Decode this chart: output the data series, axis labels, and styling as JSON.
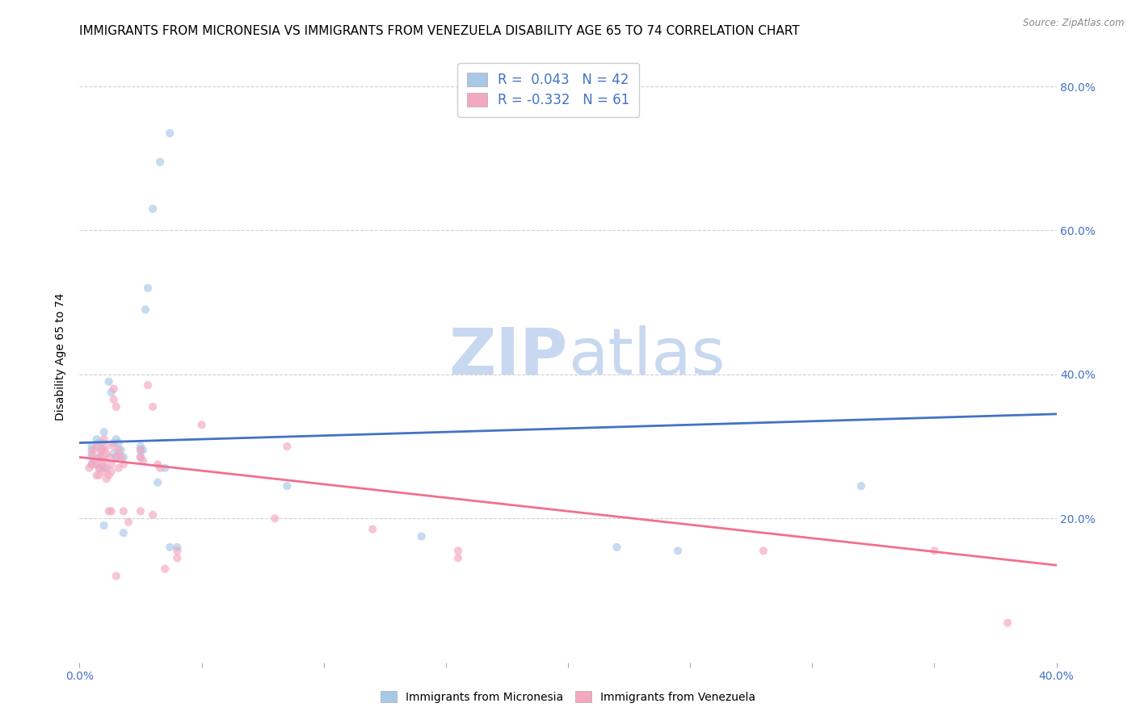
{
  "title": "IMMIGRANTS FROM MICRONESIA VS IMMIGRANTS FROM VENEZUELA DISABILITY AGE 65 TO 74 CORRELATION CHART",
  "source": "Source: ZipAtlas.com",
  "ylabel": "Disability Age 65 to 74",
  "yaxis_ticks": [
    0.0,
    0.2,
    0.4,
    0.6,
    0.8
  ],
  "yaxis_right_labels": [
    "",
    "20.0%",
    "40.0%",
    "60.0%",
    "80.0%"
  ],
  "xlim": [
    0.0,
    0.4
  ],
  "ylim": [
    0.0,
    0.85
  ],
  "legend_line1": "R =  0.043   N = 42",
  "legend_line2": "R = -0.332   N = 61",
  "blue_scatter": [
    [
      0.005,
      0.3
    ],
    [
      0.005,
      0.295
    ],
    [
      0.005,
      0.285
    ],
    [
      0.005,
      0.275
    ],
    [
      0.007,
      0.31
    ],
    [
      0.008,
      0.305
    ],
    [
      0.008,
      0.285
    ],
    [
      0.008,
      0.27
    ],
    [
      0.009,
      0.295
    ],
    [
      0.009,
      0.305
    ],
    [
      0.01,
      0.32
    ],
    [
      0.01,
      0.27
    ],
    [
      0.01,
      0.19
    ],
    [
      0.012,
      0.39
    ],
    [
      0.013,
      0.375
    ],
    [
      0.014,
      0.305
    ],
    [
      0.014,
      0.29
    ],
    [
      0.015,
      0.285
    ],
    [
      0.015,
      0.31
    ],
    [
      0.016,
      0.29
    ],
    [
      0.016,
      0.305
    ],
    [
      0.017,
      0.295
    ],
    [
      0.018,
      0.285
    ],
    [
      0.018,
      0.18
    ],
    [
      0.025,
      0.295
    ],
    [
      0.025,
      0.285
    ],
    [
      0.025,
      0.3
    ],
    [
      0.026,
      0.295
    ],
    [
      0.027,
      0.49
    ],
    [
      0.028,
      0.52
    ],
    [
      0.03,
      0.63
    ],
    [
      0.032,
      0.25
    ],
    [
      0.033,
      0.695
    ],
    [
      0.035,
      0.27
    ],
    [
      0.037,
      0.735
    ],
    [
      0.037,
      0.16
    ],
    [
      0.04,
      0.16
    ],
    [
      0.085,
      0.245
    ],
    [
      0.14,
      0.175
    ],
    [
      0.22,
      0.16
    ],
    [
      0.245,
      0.155
    ],
    [
      0.32,
      0.245
    ]
  ],
  "pink_scatter": [
    [
      0.004,
      0.27
    ],
    [
      0.005,
      0.29
    ],
    [
      0.005,
      0.275
    ],
    [
      0.006,
      0.295
    ],
    [
      0.006,
      0.28
    ],
    [
      0.007,
      0.3
    ],
    [
      0.007,
      0.275
    ],
    [
      0.007,
      0.26
    ],
    [
      0.008,
      0.285
    ],
    [
      0.008,
      0.27
    ],
    [
      0.008,
      0.26
    ],
    [
      0.009,
      0.295
    ],
    [
      0.009,
      0.285
    ],
    [
      0.009,
      0.275
    ],
    [
      0.01,
      0.31
    ],
    [
      0.01,
      0.295
    ],
    [
      0.01,
      0.28
    ],
    [
      0.01,
      0.265
    ],
    [
      0.011,
      0.3
    ],
    [
      0.011,
      0.29
    ],
    [
      0.011,
      0.27
    ],
    [
      0.011,
      0.255
    ],
    [
      0.012,
      0.285
    ],
    [
      0.012,
      0.26
    ],
    [
      0.012,
      0.21
    ],
    [
      0.013,
      0.275
    ],
    [
      0.013,
      0.265
    ],
    [
      0.013,
      0.21
    ],
    [
      0.014,
      0.38
    ],
    [
      0.014,
      0.365
    ],
    [
      0.014,
      0.3
    ],
    [
      0.015,
      0.355
    ],
    [
      0.015,
      0.285
    ],
    [
      0.015,
      0.12
    ],
    [
      0.016,
      0.295
    ],
    [
      0.016,
      0.27
    ],
    [
      0.017,
      0.285
    ],
    [
      0.018,
      0.275
    ],
    [
      0.018,
      0.21
    ],
    [
      0.02,
      0.195
    ],
    [
      0.025,
      0.295
    ],
    [
      0.025,
      0.285
    ],
    [
      0.025,
      0.21
    ],
    [
      0.026,
      0.28
    ],
    [
      0.028,
      0.385
    ],
    [
      0.03,
      0.355
    ],
    [
      0.03,
      0.205
    ],
    [
      0.032,
      0.275
    ],
    [
      0.033,
      0.27
    ],
    [
      0.035,
      0.13
    ],
    [
      0.04,
      0.155
    ],
    [
      0.04,
      0.145
    ],
    [
      0.05,
      0.33
    ],
    [
      0.08,
      0.2
    ],
    [
      0.085,
      0.3
    ],
    [
      0.12,
      0.185
    ],
    [
      0.155,
      0.155
    ],
    [
      0.155,
      0.145
    ],
    [
      0.28,
      0.155
    ],
    [
      0.35,
      0.155
    ],
    [
      0.38,
      0.055
    ]
  ],
  "blue_line_x": [
    0.0,
    0.4
  ],
  "blue_line_y_start": 0.305,
  "blue_line_y_end": 0.345,
  "pink_line_x": [
    0.0,
    0.4
  ],
  "pink_line_y_start": 0.285,
  "pink_line_y_end": 0.135,
  "scatter_alpha": 0.65,
  "scatter_size": 55,
  "blue_color": "#a8c8e8",
  "pink_color": "#f4a8c0",
  "blue_line_color": "#4472c4",
  "pink_line_color": "#f07090",
  "grid_color": "#cccccc",
  "title_fontsize": 11,
  "axis_label_fontsize": 10,
  "tick_fontsize": 10,
  "tick_color": "#4472c4",
  "watermark_zip": "ZIP",
  "watermark_atlas": "atlas",
  "watermark_color": "#c8d8f0",
  "watermark_fontsize": 58
}
